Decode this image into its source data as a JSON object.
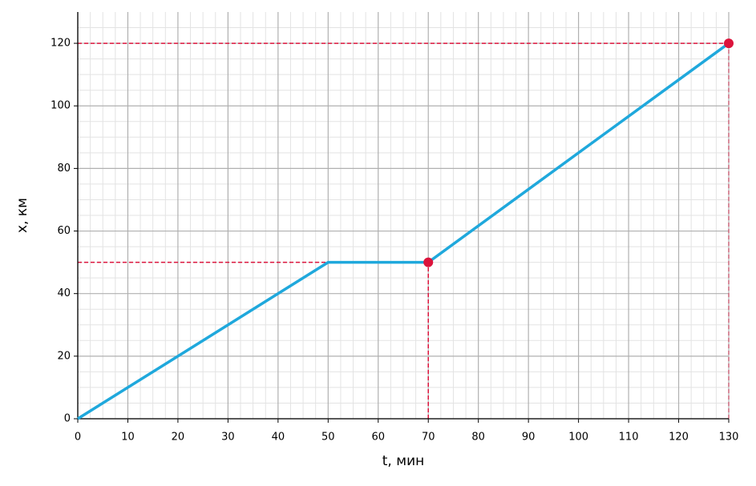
{
  "chart_data": {
    "type": "line",
    "x_label": "t, мин",
    "y_label": "x, км",
    "series": [
      {
        "x": [
          0,
          50,
          70,
          130
        ],
        "values": [
          0,
          50,
          50,
          120
        ],
        "color": "#1fa8dc"
      }
    ],
    "points": {
      "x": [
        70,
        130
      ],
      "values": [
        50,
        120
      ],
      "color": "#dc143c"
    },
    "xlim": [
      0,
      130
    ],
    "ylim": [
      0,
      130
    ],
    "xticks": [
      0,
      10,
      20,
      30,
      40,
      50,
      60,
      70,
      80,
      90,
      100,
      110,
      120,
      130
    ],
    "yticks": [
      0,
      20,
      40,
      60,
      80,
      100,
      120
    ],
    "grid": true
  }
}
